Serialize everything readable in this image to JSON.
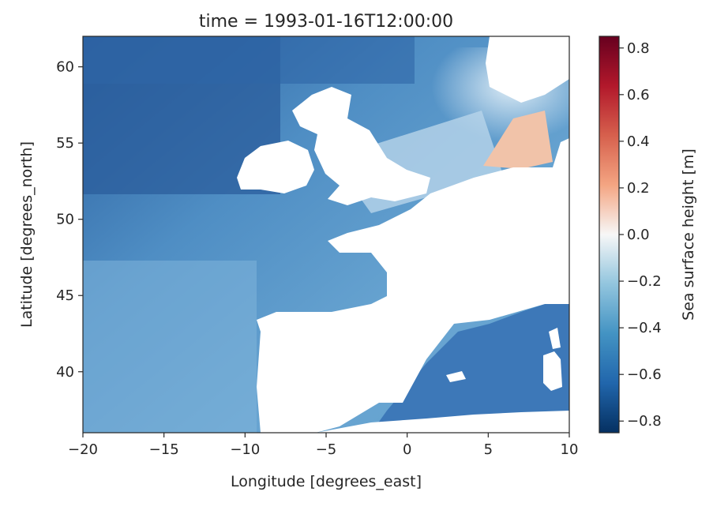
{
  "chart_data": {
    "type": "heatmap",
    "title": "time = 1993-01-16T12:00:00",
    "xlabel": "Longitude [degrees_east]",
    "ylabel": "Latitude [degrees_north]",
    "xlim": [
      -20,
      10
    ],
    "ylim": [
      36,
      62
    ],
    "x_ticks": [
      -20,
      -15,
      -10,
      -5,
      0,
      5,
      10
    ],
    "x_tick_labels": [
      "−20",
      "−15",
      "−10",
      "−5",
      "0",
      "5",
      "10"
    ],
    "y_ticks": [
      40,
      45,
      50,
      55,
      60
    ],
    "y_tick_labels": [
      "40",
      "45",
      "50",
      "55",
      "60"
    ],
    "colorbar": {
      "label": "Sea surface height [m]",
      "cmap": "RdBu_r",
      "vmin": -0.85,
      "vmax": 0.85,
      "ticks": [
        -0.8,
        -0.6,
        -0.4,
        -0.2,
        0.0,
        0.2,
        0.4,
        0.6,
        0.8
      ],
      "tick_labels": [
        "−0.8",
        "−0.6",
        "−0.4",
        "−0.2",
        "0.0",
        "0.2",
        "0.4",
        "0.6",
        "0.8"
      ]
    },
    "field_description_values_m": {
      "northwest_atlantic": -0.75,
      "central_atlantic": -0.45,
      "bay_of_biscay": -0.4,
      "english_channel": -0.25,
      "north_sea_south": -0.1,
      "german_bight": 0.35,
      "mediterranean_west": -0.65
    }
  },
  "colors": {
    "neg_strong": "#053061",
    "neg_mid": "#4393c3",
    "neg_light": "#d1e5f0",
    "zero": "#f7f7f7",
    "pos_light": "#fddbc7",
    "pos_mid": "#d6604d",
    "pos_strong": "#67001f",
    "land": "#ffffff",
    "axis": "#262626"
  }
}
